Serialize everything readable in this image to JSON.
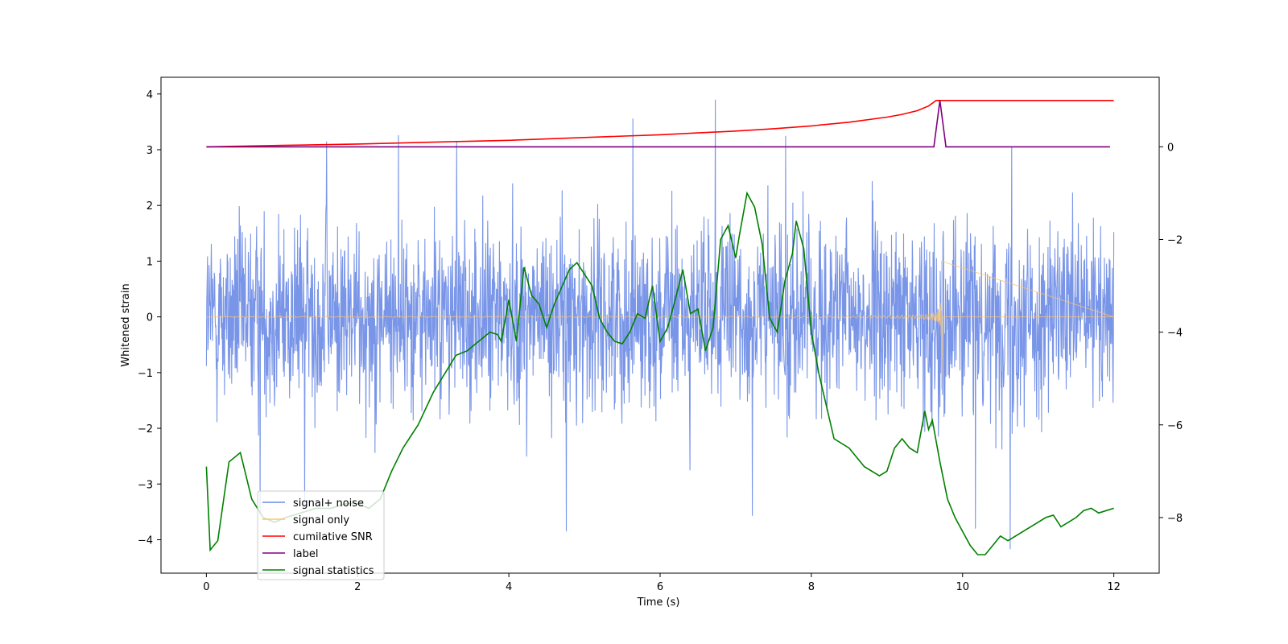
{
  "chart_data": {
    "type": "line",
    "xlabel": "Time (s)",
    "ylabel": "Whitened strain",
    "xlim": [
      -0.6,
      12.6
    ],
    "ylim": [
      -4.6,
      4.3
    ],
    "y2lim": [
      -9.2,
      1.5
    ],
    "x_ticks": [
      0,
      2,
      4,
      6,
      8,
      10,
      12
    ],
    "y_ticks": [
      4,
      3,
      2,
      1,
      0,
      -1,
      -2,
      -3,
      -4
    ],
    "y2_ticks": [
      0,
      -2,
      -4,
      -6,
      -8
    ],
    "x_tick_labels": [
      "0",
      "2",
      "4",
      "6",
      "8",
      "10",
      "12"
    ],
    "y_tick_labels": [
      "4",
      "3",
      "2",
      "1",
      "0",
      "−1",
      "−2",
      "−3",
      "−4"
    ],
    "y2_tick_labels": [
      "0",
      "−2",
      "−4",
      "−6",
      "−8"
    ],
    "legend_position": "lower-left",
    "series": [
      {
        "name": "signal+ noise",
        "axis": "left",
        "color": "#6a8ae6",
        "description": "noisy whitened strain, roughly within -2.5..2.5 with spikes to about ±3.9",
        "merger_time": 9.72,
        "spikes": [
          [
            1.59,
            3.15
          ],
          [
            2.54,
            3.26
          ],
          [
            3.31,
            3.16
          ],
          [
            5.64,
            3.56
          ],
          [
            6.73,
            3.9
          ],
          [
            7.66,
            3.25
          ],
          [
            10.65,
            3.05
          ],
          [
            4.76,
            -3.85
          ],
          [
            10.63,
            -4.17
          ],
          [
            7.22,
            -3.57
          ],
          [
            10.17,
            -3.8
          ],
          [
            0.71,
            -3.55
          ],
          [
            1.3,
            -3.42
          ]
        ]
      },
      {
        "name": "signal only",
        "axis": "left",
        "color": "#ffc46a",
        "description": "chirp signal growing toward merger at about 9.72 s, peak about +1.0 / -1.3"
      },
      {
        "name": "cumilative SNR",
        "axis": "right",
        "color": "#ff0000",
        "x": [
          0,
          1,
          2,
          3,
          4,
          5,
          6,
          6.5,
          7,
          7.5,
          8,
          8.5,
          9,
          9.2,
          9.4,
          9.55,
          9.65,
          9.72,
          12
        ],
        "y": [
          0.0,
          0.03,
          0.06,
          0.1,
          0.14,
          0.2,
          0.26,
          0.3,
          0.34,
          0.39,
          0.45,
          0.53,
          0.64,
          0.7,
          0.78,
          0.88,
          1.0,
          1.0,
          1.0
        ]
      },
      {
        "name": "label",
        "axis": "right",
        "color": "#800080",
        "x": [
          0,
          9.62,
          9.7,
          9.78,
          11.95
        ],
        "y": [
          0,
          0,
          1.0,
          0,
          0
        ]
      },
      {
        "name": "signal statistics",
        "axis": "right",
        "color": "#008000",
        "x": [
          0,
          0.05,
          0.15,
          0.3,
          0.45,
          0.6,
          0.75,
          0.9,
          1.05,
          1.25,
          1.45,
          1.65,
          1.85,
          2.0,
          2.15,
          2.3,
          2.45,
          2.6,
          2.8,
          3.0,
          3.15,
          3.3,
          3.45,
          3.6,
          3.75,
          3.85,
          3.9,
          4.0,
          4.1,
          4.2,
          4.3,
          4.4,
          4.5,
          4.6,
          4.8,
          4.9,
          5.0,
          5.1,
          5.2,
          5.3,
          5.4,
          5.5,
          5.6,
          5.7,
          5.8,
          5.9,
          6.0,
          6.1,
          6.2,
          6.3,
          6.4,
          6.5,
          6.6,
          6.7,
          6.8,
          6.9,
          7.0,
          7.05,
          7.15,
          7.25,
          7.35,
          7.45,
          7.55,
          7.65,
          7.75,
          7.8,
          7.9,
          8.0,
          8.1,
          8.2,
          8.3,
          8.5,
          8.7,
          8.9,
          9.0,
          9.1,
          9.2,
          9.3,
          9.4,
          9.5,
          9.55,
          9.6,
          9.7,
          9.8,
          9.9,
          10.0,
          10.1,
          10.2,
          10.3,
          10.4,
          10.5,
          10.6,
          10.7,
          10.8,
          10.9,
          11.0,
          11.1,
          11.2,
          11.3,
          11.4,
          11.5,
          11.6,
          11.7,
          11.8,
          11.9,
          12.0
        ],
        "y": [
          -6.9,
          -8.7,
          -8.5,
          -6.8,
          -6.6,
          -7.6,
          -8.0,
          -8.1,
          -8.0,
          -7.9,
          -7.8,
          -7.8,
          -7.7,
          -7.7,
          -7.8,
          -7.6,
          -7.0,
          -6.5,
          -6.0,
          -5.3,
          -4.9,
          -4.5,
          -4.4,
          -4.2,
          -4.0,
          -4.05,
          -4.2,
          -3.3,
          -4.2,
          -2.6,
          -3.2,
          -3.4,
          -3.9,
          -3.4,
          -2.65,
          -2.5,
          -2.75,
          -3.0,
          -3.7,
          -4.0,
          -4.2,
          -4.25,
          -4.0,
          -3.6,
          -3.7,
          -3.0,
          -4.2,
          -3.9,
          -3.3,
          -2.65,
          -3.6,
          -3.5,
          -4.4,
          -3.9,
          -2.0,
          -1.7,
          -2.4,
          -1.9,
          -1.0,
          -1.3,
          -2.1,
          -3.7,
          -4.0,
          -2.9,
          -2.3,
          -1.6,
          -2.2,
          -4.0,
          -4.9,
          -5.6,
          -6.3,
          -6.5,
          -6.9,
          -7.1,
          -7.0,
          -6.5,
          -6.3,
          -6.5,
          -6.6,
          -5.7,
          -6.1,
          -5.9,
          -6.8,
          -7.6,
          -8.0,
          -8.3,
          -8.6,
          -8.8,
          -8.8,
          -8.6,
          -8.4,
          -8.5,
          -8.4,
          -8.3,
          -8.2,
          -8.1,
          -8.0,
          -7.95,
          -8.2,
          -8.1,
          -8.0,
          -7.85,
          -7.8,
          -7.9,
          -7.85,
          -7.8
        ]
      }
    ]
  }
}
